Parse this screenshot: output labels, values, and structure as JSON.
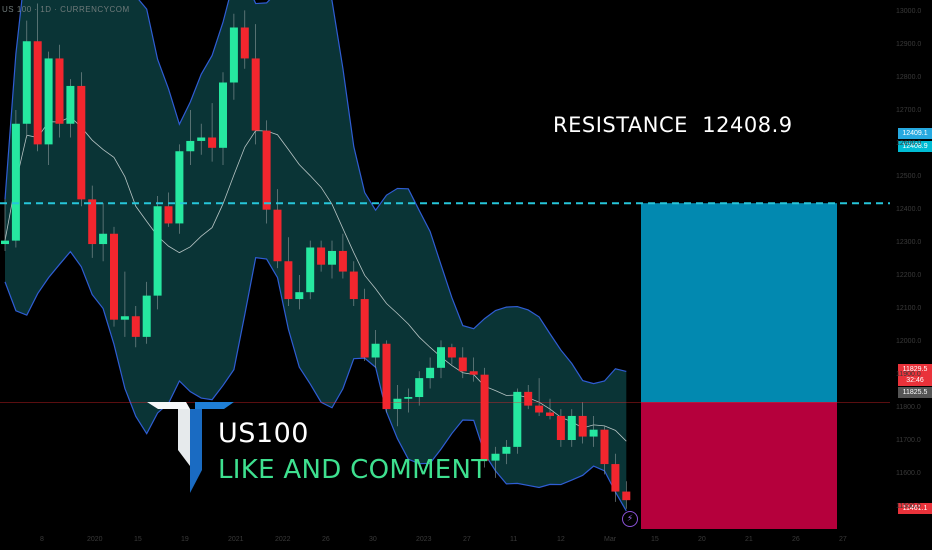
{
  "header": {
    "symbol_line": "US 100 · 1D · CURRENCYCOM"
  },
  "brand": {
    "title": "US100",
    "subtitle": "LIKE AND COMMENT"
  },
  "annotation": {
    "resistance_label": "RESISTANCE",
    "resistance_value": "12408.9"
  },
  "price_axis": {
    "tags": [
      {
        "text": "12409.1",
        "bg": "#26a9e0"
      },
      {
        "text": "12408.9",
        "bg": "#00bcd4"
      },
      {
        "text": "11829.5",
        "bg": "#e9323a"
      },
      {
        "text": "32:46",
        "bg": "#e9323a"
      },
      {
        "text": "11825.5",
        "bg": "#555555"
      },
      {
        "text": "11461.1",
        "bg": "#e9323a"
      }
    ],
    "ticks": [
      "13000.0",
      "12900.0",
      "12800.0",
      "12700.0",
      "12600.0",
      "12500.0",
      "12400.0",
      "12300.0",
      "12200.0",
      "12100.0",
      "12000.0",
      "11900.0",
      "11800.0",
      "11700.0",
      "11600.0",
      "11500.0"
    ]
  },
  "time_axis": {
    "ticks": [
      "8",
      "2020",
      "15",
      "19",
      "2021",
      "2022",
      "26",
      "30",
      "2023",
      "27",
      "11",
      "12",
      "Mar",
      "15",
      "20",
      "21",
      "26",
      "27"
    ]
  },
  "colors": {
    "up": "#26e8a0",
    "down": "#f2262e",
    "band_fill": "#0b3a3c",
    "band_line": "#2f5dd4",
    "mid_line": "#b7c4c4",
    "resistance": "#26c6da",
    "target_zone": "#0289b0",
    "stop_zone": "#b5003c"
  },
  "icons": {
    "event": "lightning-icon",
    "logo": "tradingview-style-logo"
  },
  "chart_data": {
    "type": "candlestick",
    "title": "US100",
    "resistance": 12408.9,
    "current_price": 11829.5,
    "target_zone": {
      "from": 11829.5,
      "to": 12408.9
    },
    "stop_zone": {
      "from": 11461.1,
      "to": 11829.5
    },
    "ylim": [
      11400,
      13000
    ],
    "candles": [
      {
        "o": 12290,
        "h": 12420,
        "l": 12270,
        "c": 12300
      },
      {
        "o": 12300,
        "h": 12680,
        "l": 12280,
        "c": 12640
      },
      {
        "o": 12640,
        "h": 12940,
        "l": 12600,
        "c": 12880
      },
      {
        "o": 12880,
        "h": 12990,
        "l": 12560,
        "c": 12580
      },
      {
        "o": 12580,
        "h": 12850,
        "l": 12520,
        "c": 12830
      },
      {
        "o": 12830,
        "h": 12870,
        "l": 12600,
        "c": 12640
      },
      {
        "o": 12640,
        "h": 12770,
        "l": 12600,
        "c": 12750
      },
      {
        "o": 12750,
        "h": 12790,
        "l": 12400,
        "c": 12420
      },
      {
        "o": 12420,
        "h": 12460,
        "l": 12250,
        "c": 12290
      },
      {
        "o": 12290,
        "h": 12410,
        "l": 12240,
        "c": 12320
      },
      {
        "o": 12320,
        "h": 12340,
        "l": 12050,
        "c": 12070
      },
      {
        "o": 12070,
        "h": 12210,
        "l": 12020,
        "c": 12080
      },
      {
        "o": 12080,
        "h": 12110,
        "l": 11990,
        "c": 12020
      },
      {
        "o": 12020,
        "h": 12180,
        "l": 12000,
        "c": 12140
      },
      {
        "o": 12140,
        "h": 12430,
        "l": 12100,
        "c": 12400
      },
      {
        "o": 12400,
        "h": 12440,
        "l": 12340,
        "c": 12350
      },
      {
        "o": 12350,
        "h": 12580,
        "l": 12320,
        "c": 12560
      },
      {
        "o": 12560,
        "h": 12680,
        "l": 12520,
        "c": 12590
      },
      {
        "o": 12590,
        "h": 12640,
        "l": 12550,
        "c": 12600
      },
      {
        "o": 12600,
        "h": 12700,
        "l": 12530,
        "c": 12570
      },
      {
        "o": 12570,
        "h": 12790,
        "l": 12520,
        "c": 12760
      },
      {
        "o": 12760,
        "h": 12960,
        "l": 12710,
        "c": 12920
      },
      {
        "o": 12920,
        "h": 12970,
        "l": 12800,
        "c": 12830
      },
      {
        "o": 12830,
        "h": 12930,
        "l": 12580,
        "c": 12620
      },
      {
        "o": 12620,
        "h": 12650,
        "l": 12350,
        "c": 12390
      },
      {
        "o": 12390,
        "h": 12450,
        "l": 12220,
        "c": 12240
      },
      {
        "o": 12240,
        "h": 12310,
        "l": 12110,
        "c": 12130
      },
      {
        "o": 12130,
        "h": 12200,
        "l": 12100,
        "c": 12150
      },
      {
        "o": 12150,
        "h": 12300,
        "l": 12130,
        "c": 12280
      },
      {
        "o": 12280,
        "h": 12300,
        "l": 12210,
        "c": 12230
      },
      {
        "o": 12230,
        "h": 12300,
        "l": 12190,
        "c": 12270
      },
      {
        "o": 12270,
        "h": 12320,
        "l": 12190,
        "c": 12210
      },
      {
        "o": 12210,
        "h": 12240,
        "l": 12110,
        "c": 12130
      },
      {
        "o": 12130,
        "h": 12160,
        "l": 11950,
        "c": 11960
      },
      {
        "o": 11960,
        "h": 12040,
        "l": 11930,
        "c": 12000
      },
      {
        "o": 12000,
        "h": 12010,
        "l": 11800,
        "c": 11810
      },
      {
        "o": 11810,
        "h": 11880,
        "l": 11760,
        "c": 11840
      },
      {
        "o": 11840,
        "h": 11870,
        "l": 11800,
        "c": 11845
      },
      {
        "o": 11845,
        "h": 11920,
        "l": 11820,
        "c": 11900
      },
      {
        "o": 11900,
        "h": 11960,
        "l": 11870,
        "c": 11930
      },
      {
        "o": 11930,
        "h": 12010,
        "l": 11900,
        "c": 11990
      },
      {
        "o": 11990,
        "h": 12000,
        "l": 11940,
        "c": 11960
      },
      {
        "o": 11960,
        "h": 11990,
        "l": 11900,
        "c": 11920
      },
      {
        "o": 11920,
        "h": 11960,
        "l": 11890,
        "c": 11910
      },
      {
        "o": 11910,
        "h": 11930,
        "l": 11640,
        "c": 11660
      },
      {
        "o": 11660,
        "h": 11700,
        "l": 11610,
        "c": 11680
      },
      {
        "o": 11680,
        "h": 11720,
        "l": 11650,
        "c": 11700
      },
      {
        "o": 11700,
        "h": 11870,
        "l": 11680,
        "c": 11860
      },
      {
        "o": 11860,
        "h": 11880,
        "l": 11810,
        "c": 11820
      },
      {
        "o": 11820,
        "h": 11900,
        "l": 11790,
        "c": 11800
      },
      {
        "o": 11800,
        "h": 11840,
        "l": 11780,
        "c": 11790
      },
      {
        "o": 11790,
        "h": 11810,
        "l": 11700,
        "c": 11720
      },
      {
        "o": 11720,
        "h": 11810,
        "l": 11700,
        "c": 11790
      },
      {
        "o": 11790,
        "h": 11830,
        "l": 11710,
        "c": 11730
      },
      {
        "o": 11730,
        "h": 11790,
        "l": 11700,
        "c": 11750
      },
      {
        "o": 11750,
        "h": 11760,
        "l": 11620,
        "c": 11650
      },
      {
        "o": 11650,
        "h": 11680,
        "l": 11540,
        "c": 11570
      },
      {
        "o": 11570,
        "h": 11600,
        "l": 11520,
        "c": 11545
      }
    ]
  }
}
